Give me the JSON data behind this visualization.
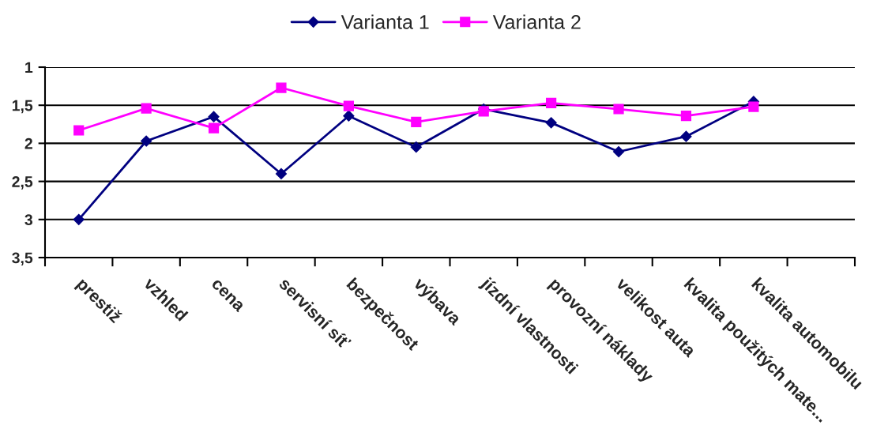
{
  "chart_data": {
    "type": "line",
    "categories": [
      "prestiž",
      "vzhled",
      "cena",
      "servisní síť",
      "bezpečnost",
      "výbava",
      "jízdní vlastnosti",
      "provozní náklady",
      "velikost auta",
      "kvalita použitých mate...",
      "kvalita automobilu",
      null
    ],
    "series": [
      {
        "name": "Varianta 1",
        "color": "#000080",
        "marker": "diamond",
        "values": [
          3.0,
          1.97,
          1.65,
          2.4,
          1.64,
          2.05,
          1.55,
          1.73,
          2.11,
          1.91,
          1.45,
          null
        ]
      },
      {
        "name": "Varianta 2",
        "color": "#ff00ff",
        "marker": "square",
        "values": [
          1.83,
          1.54,
          1.8,
          1.27,
          1.51,
          1.72,
          1.58,
          1.47,
          1.55,
          1.64,
          1.52,
          null
        ]
      }
    ],
    "ylim": [
      3.5,
      1
    ],
    "yticks": [
      1,
      {
        "value": 1.5,
        "label": "1,5"
      },
      2,
      {
        "value": 2.5,
        "label": "2,5"
      },
      3,
      {
        "value": 3.5,
        "label": "3,5"
      }
    ],
    "grid": "y",
    "legend": "top",
    "line_style": "solid"
  }
}
